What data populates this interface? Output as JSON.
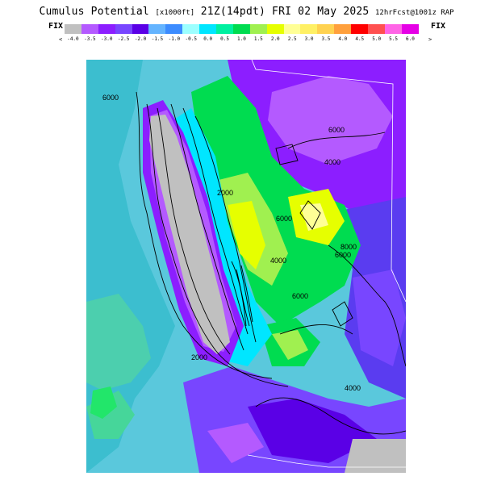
{
  "title": {
    "main": "Cumulus Potential",
    "unit": "[x1000ft]",
    "valid": "21Z(14pdt) FRI 02 May 2025",
    "run": "12hrFcst@1001z RAP"
  },
  "legend": {
    "left_label": "FIX",
    "right_label": "FIX",
    "low_arrow": "<",
    "high_arrow": ">",
    "ticks": [
      "-4.0",
      "-3.5",
      "-3.0",
      "-2.5",
      "-2.0",
      "-1.5",
      "-1.0",
      "-0.5",
      "0.0",
      "0.5",
      "1.0",
      "1.5",
      "2.0",
      "2.5",
      "3.0",
      "3.5",
      "4.0",
      "4.5",
      "5.0",
      "5.5",
      "6.0"
    ],
    "colors": [
      "#c0c0c0",
      "#b45aff",
      "#8c1eff",
      "#7846ff",
      "#5a00e6",
      "#64b4ff",
      "#3c8cff",
      "#9cffff",
      "#00e6ff",
      "#00f0a0",
      "#00dc50",
      "#a0f050",
      "#e6ff00",
      "#ffff96",
      "#fff064",
      "#ffd250",
      "#ffa03c",
      "#ff0000",
      "#ff5050",
      "#ff64e6",
      "#e600e6"
    ]
  },
  "map": {
    "contour_labels": [
      "6000",
      "6000",
      "4000",
      "2000",
      "6000",
      "4000",
      "6000",
      "6000",
      "8000",
      "2000",
      "4000"
    ]
  }
}
